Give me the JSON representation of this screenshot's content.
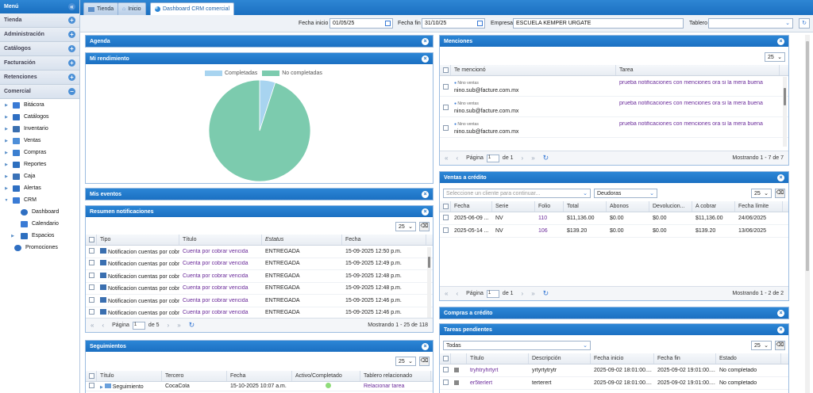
{
  "sidebar": {
    "menu_label": "Menú",
    "sections": [
      "Tienda",
      "Administración",
      "Catálogos",
      "Facturación",
      "Retenciones",
      "Comercial"
    ],
    "items": [
      {
        "label": "Bitácora",
        "icon": "book-icon",
        "color": "#3a7bd5"
      },
      {
        "label": "Catálogos",
        "icon": "folder-icon",
        "color": "#2f6fc2"
      },
      {
        "label": "Inventario",
        "icon": "boxes-icon",
        "color": "#3a6fb0"
      },
      {
        "label": "Ventas",
        "icon": "tag-icon",
        "color": "#4d8ed8"
      },
      {
        "label": "Compras",
        "icon": "cart-icon",
        "color": "#3b7fd0"
      },
      {
        "label": "Reportes",
        "icon": "report-icon",
        "color": "#2d6fbf"
      },
      {
        "label": "Caja",
        "icon": "cashbox-icon",
        "color": "#3a72b8"
      },
      {
        "label": "Alertas",
        "icon": "bell-icon",
        "color": "#2f6fc2"
      },
      {
        "label": "CRM",
        "icon": "people-icon",
        "color": "#3a7bd5"
      }
    ],
    "crm_items": [
      {
        "label": "Dashboard",
        "icon": "dashboard-icon"
      },
      {
        "label": "Calendario",
        "icon": "calendar-icon"
      },
      {
        "label": "Espacios",
        "icon": "grid-icon"
      }
    ],
    "promo_label": "Promociones"
  },
  "tabs": [
    {
      "label": "Tienda"
    },
    {
      "label": "Inicio"
    },
    {
      "label": "Dashboard CRM comercial"
    }
  ],
  "filters": {
    "start_label": "Fecha inicio",
    "start_value": "01/05/25",
    "end_label": "Fecha fin",
    "end_value": "31/10/25",
    "company_label": "Empresa",
    "company_value": "ESCUELA KEMPER URGATE",
    "board_label": "Tablero",
    "board_value": ""
  },
  "agenda": {
    "title": "Agenda"
  },
  "rendimiento": {
    "title": "Mi rendimiento",
    "chart_data": {
      "type": "pie",
      "categories": [
        "Completadas",
        "No completadas"
      ],
      "values": [
        5,
        95
      ],
      "colors": [
        "#a8d4f0",
        "#7ccbae"
      ],
      "legend": "top"
    }
  },
  "eventos": {
    "title": "Mis eventos"
  },
  "notificaciones": {
    "title": "Resumen notificaciones",
    "page_size": "25",
    "columns": [
      "Tipo",
      "Título",
      "Estatus",
      "Fecha"
    ],
    "rows": [
      {
        "tipo": "Notificacion cuentas por cobrar",
        "titulo": "Cuenta por cobrar vencida",
        "estatus": "ENTREGADA",
        "fecha": "15-09-2025 12:50 p.m."
      },
      {
        "tipo": "Notificacion cuentas por cobrar",
        "titulo": "Cuenta por cobrar vencida",
        "estatus": "ENTREGADA",
        "fecha": "15-09-2025 12:49 p.m."
      },
      {
        "tipo": "Notificacion cuentas por cobrar",
        "titulo": "Cuenta por cobrar vencida",
        "estatus": "ENTREGADA",
        "fecha": "15-09-2025 12:48 p.m."
      },
      {
        "tipo": "Notificacion cuentas por cobrar",
        "titulo": "Cuenta por cobrar vencida",
        "estatus": "ENTREGADA",
        "fecha": "15-09-2025 12:48 p.m."
      },
      {
        "tipo": "Notificacion cuentas por cobrar",
        "titulo": "Cuenta por cobrar vencida",
        "estatus": "ENTREGADA",
        "fecha": "15-09-2025 12:46 p.m."
      },
      {
        "tipo": "Notificacion cuentas por cobrar",
        "titulo": "Cuenta por cobrar vencida",
        "estatus": "ENTREGADA",
        "fecha": "15-09-2025 12:46 p.m."
      }
    ],
    "pager": {
      "page_label": "Página",
      "page": "1",
      "of": "de 5",
      "showing": "Mostrando 1 - 25 de 118"
    }
  },
  "seguimientos": {
    "title": "Seguimientos",
    "page_size": "25",
    "columns": [
      "Título",
      "Tercero",
      "Fecha",
      "Activo/Completado",
      "Tablero relacionado"
    ],
    "rows": [
      {
        "titulo": "Seguimiento",
        "tercero": "CocaCola",
        "fecha": "15-10-2025 10:07 a.m.",
        "tablero": "Relacionar tarea"
      }
    ]
  },
  "menciones": {
    "title": "Menciones",
    "page_size": "25",
    "columns": [
      "Te mencionó",
      "Tarea"
    ],
    "rows": [
      {
        "user": "Nino ventas",
        "email": "nino.sub@facture.com.mx",
        "tarea": "prueba notificaciones con menciones ora si la mera buena"
      },
      {
        "user": "Nino ventas",
        "email": "nino.sub@facture.com.mx",
        "tarea": "prueba notificaciones con menciones ora si la mera buena"
      },
      {
        "user": "Nino ventas",
        "email": "nino.sub@facture.com.mx",
        "tarea": "prueba notificaciones con menciones ora si la mera buena"
      },
      {
        "user": "Nino ventas",
        "email": "",
        "tarea": "prueba notificaciones con menciones ora si la mera buena"
      }
    ],
    "pager": {
      "page_label": "Página",
      "page": "1",
      "of": "de 1",
      "showing": "Mostrando 1 - 7 de 7"
    }
  },
  "ventas": {
    "title": "Ventas a crédito",
    "client_placeholder": "Seleccione un cliente para continuar...",
    "type_value": "Deudoras",
    "page_size": "25",
    "columns": [
      "Fecha",
      "Serie",
      "Folio",
      "Total",
      "Abonos",
      "Devolucion...",
      "A cobrar",
      "Fecha límite"
    ],
    "rows": [
      {
        "fecha": "2025-06-09 ...",
        "serie": "NV",
        "folio": "110",
        "total": "$11,136.00",
        "abonos": "$0.00",
        "devol": "$0.00",
        "cobrar": "$11,136.00",
        "limite": "24/06/2025"
      },
      {
        "fecha": "2025-05-14 ...",
        "serie": "NV",
        "folio": "106",
        "total": "$139.20",
        "abonos": "$0.00",
        "devol": "$0.00",
        "cobrar": "$139.20",
        "limite": "13/06/2025"
      }
    ],
    "pager": {
      "page_label": "Página",
      "page": "1",
      "of": "de 1",
      "showing": "Mostrando 1 - 2 de 2"
    }
  },
  "compras": {
    "title": "Compras a crédito"
  },
  "tareas": {
    "title": "Tareas pendientes",
    "filter_value": "Todas",
    "page_size": "25",
    "columns": [
      "Título",
      "Descripción",
      "Fecha inicio",
      "Fecha fin",
      "Estado"
    ],
    "rows": [
      {
        "titulo": "tryhtryhrtyrt",
        "desc": "yrtyrtytrytr",
        "inicio": "2025-09-02 18:01:00....",
        "fin": "2025-09-02 19:01:00....",
        "estado": "No completado"
      },
      {
        "titulo": "er5terlert",
        "desc": "terterert",
        "inicio": "2025-09-02 18:01:00....",
        "fin": "2025-09-02 19:01:00....",
        "estado": "No completado"
      }
    ]
  }
}
